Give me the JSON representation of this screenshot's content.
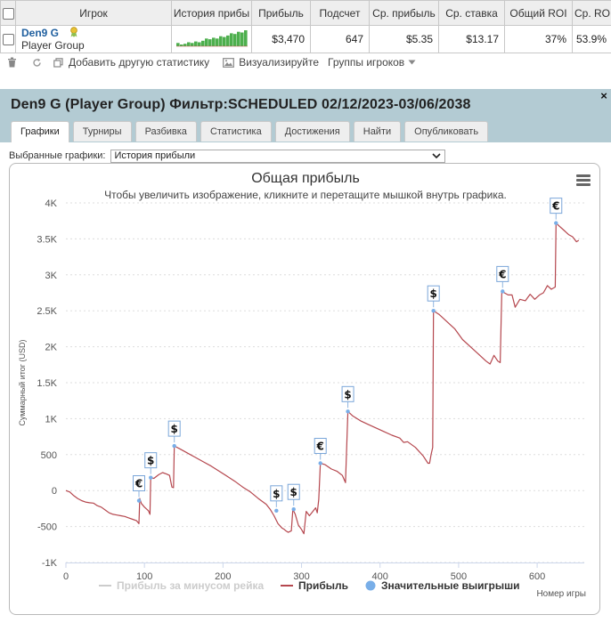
{
  "table": {
    "headers": [
      "Игрок",
      "История прибы",
      "Прибыль",
      "Подсчет",
      "Ср. прибыль",
      "Ср. ставка",
      "Общий ROI",
      "Ср. ROI"
    ],
    "row": {
      "player_name": "Den9 G",
      "player_group": "Player Group",
      "profit": "$3,470",
      "count": "647",
      "avg_profit": "$5.35",
      "avg_stake": "$13.17",
      "total_roi": "37%",
      "avg_roi": "53.9%"
    },
    "sparkline": [
      0,
      -2,
      -1,
      1,
      0,
      2,
      1,
      3,
      6,
      5,
      7,
      6,
      9,
      8,
      10,
      13,
      12,
      15,
      14,
      17
    ],
    "sparkline_color": "#3aa63a"
  },
  "toolbar": {
    "add_stats_label": "Добавить другую статистику",
    "visualize_label": "Визуализируйте",
    "groups_label": "Группы игроков"
  },
  "dialog": {
    "title": "Den9 G (Player Group) Фильтр:SCHEDULED 02/12/2023-03/06/2038",
    "close_glyph": "×",
    "tabs": [
      "Графики",
      "Турниры",
      "Разбивка",
      "Статистика",
      "Достижения",
      "Найти",
      "Опубликовать"
    ],
    "active_tab": 0,
    "select_label": "Выбранные графики:",
    "select_value": "История прибыли"
  },
  "chart_data": {
    "type": "line",
    "title": "Общая прибыль",
    "subtitle": "Чтобы увеличить изображение, кликните и перетащите мышкой внутрь графика.",
    "xlabel": "Номер игры",
    "ylabel": "Суммарный итог (USD)",
    "xlim": [
      0,
      660
    ],
    "ylim": [
      -1000,
      4000
    ],
    "x_ticks": [
      0,
      100,
      200,
      300,
      400,
      500,
      600
    ],
    "y_ticks": [
      -1000,
      -500,
      0,
      500,
      1000,
      1500,
      2000,
      2500,
      3000,
      3500,
      4000
    ],
    "y_tick_labels": [
      "-1K",
      "-500",
      "0",
      "500",
      "1K",
      "1.5K",
      "2K",
      "2.5K",
      "3K",
      "3.5K",
      "4K"
    ],
    "grid": "horizontal dashed",
    "legend": [
      "Прибыль за минусом рейка",
      "Прибыль",
      "Значительные выигрыши"
    ],
    "legend_position": "bottom",
    "series": [
      {
        "name": "Прибыль",
        "color": "#b5474e",
        "points": [
          [
            0,
            0
          ],
          [
            5,
            -20
          ],
          [
            10,
            -70
          ],
          [
            15,
            -110
          ],
          [
            20,
            -140
          ],
          [
            25,
            -160
          ],
          [
            30,
            -170
          ],
          [
            35,
            -175
          ],
          [
            40,
            -210
          ],
          [
            45,
            -230
          ],
          [
            50,
            -270
          ],
          [
            55,
            -310
          ],
          [
            60,
            -330
          ],
          [
            65,
            -340
          ],
          [
            70,
            -350
          ],
          [
            75,
            -360
          ],
          [
            80,
            -380
          ],
          [
            85,
            -400
          ],
          [
            90,
            -420
          ],
          [
            93,
            -460
          ],
          [
            94,
            -110
          ],
          [
            96,
            -180
          ],
          [
            100,
            -230
          ],
          [
            105,
            -280
          ],
          [
            107,
            -330
          ],
          [
            108,
            180
          ],
          [
            112,
            170
          ],
          [
            118,
            220
          ],
          [
            123,
            250
          ],
          [
            128,
            230
          ],
          [
            132,
            210
          ],
          [
            135,
            50
          ],
          [
            137,
            40
          ],
          [
            138,
            620
          ],
          [
            145,
            580
          ],
          [
            155,
            520
          ],
          [
            165,
            460
          ],
          [
            175,
            400
          ],
          [
            185,
            340
          ],
          [
            195,
            270
          ],
          [
            205,
            200
          ],
          [
            215,
            130
          ],
          [
            225,
            50
          ],
          [
            235,
            -20
          ],
          [
            245,
            -110
          ],
          [
            255,
            -190
          ],
          [
            260,
            -260
          ],
          [
            265,
            -350
          ],
          [
            270,
            -460
          ],
          [
            275,
            -520
          ],
          [
            278,
            -540
          ],
          [
            280,
            -560
          ],
          [
            283,
            -580
          ],
          [
            287,
            -560
          ],
          [
            289,
            -260
          ],
          [
            292,
            -330
          ],
          [
            296,
            -480
          ],
          [
            300,
            -540
          ],
          [
            303,
            -600
          ],
          [
            306,
            -290
          ],
          [
            310,
            -350
          ],
          [
            318,
            -240
          ],
          [
            320,
            -310
          ],
          [
            322,
            -120
          ],
          [
            324,
            380
          ],
          [
            330,
            360
          ],
          [
            338,
            300
          ],
          [
            345,
            270
          ],
          [
            352,
            210
          ],
          [
            356,
            110
          ],
          [
            359,
            1100
          ],
          [
            365,
            1040
          ],
          [
            375,
            970
          ],
          [
            385,
            920
          ],
          [
            395,
            870
          ],
          [
            405,
            820
          ],
          [
            415,
            770
          ],
          [
            425,
            730
          ],
          [
            430,
            670
          ],
          [
            435,
            680
          ],
          [
            445,
            600
          ],
          [
            455,
            480
          ],
          [
            461,
            380
          ],
          [
            463,
            380
          ],
          [
            465,
            500
          ],
          [
            467,
            600
          ],
          [
            468,
            2500
          ],
          [
            475,
            2450
          ],
          [
            485,
            2350
          ],
          [
            495,
            2250
          ],
          [
            505,
            2100
          ],
          [
            515,
            2000
          ],
          [
            525,
            1900
          ],
          [
            535,
            1800
          ],
          [
            540,
            1760
          ],
          [
            545,
            1880
          ],
          [
            550,
            1800
          ],
          [
            553,
            1780
          ],
          [
            555,
            2770
          ],
          [
            563,
            2720
          ],
          [
            568,
            2720
          ],
          [
            572,
            2550
          ],
          [
            578,
            2660
          ],
          [
            585,
            2640
          ],
          [
            591,
            2730
          ],
          [
            597,
            2660
          ],
          [
            603,
            2720
          ],
          [
            608,
            2750
          ],
          [
            613,
            2850
          ],
          [
            618,
            2800
          ],
          [
            623,
            2830
          ],
          [
            624,
            3720
          ],
          [
            628,
            3680
          ],
          [
            635,
            3610
          ],
          [
            640,
            3560
          ],
          [
            645,
            3530
          ],
          [
            650,
            3460
          ],
          [
            653,
            3480
          ]
        ]
      },
      {
        "name": "Прибыль за минусом рейка",
        "color": "#cccccc",
        "points": []
      }
    ],
    "big_wins": [
      {
        "x": 93,
        "y": -140,
        "label": "€"
      },
      {
        "x": 108,
        "y": 180,
        "label": "$"
      },
      {
        "x": 138,
        "y": 620,
        "label": "$"
      },
      {
        "x": 268,
        "y": -280,
        "label": "$"
      },
      {
        "x": 290,
        "y": -260,
        "label": "$"
      },
      {
        "x": 324,
        "y": 380,
        "label": "€"
      },
      {
        "x": 359,
        "y": 1100,
        "label": "$"
      },
      {
        "x": 468,
        "y": 2500,
        "label": "$"
      },
      {
        "x": 556,
        "y": 2770,
        "label": "€"
      },
      {
        "x": 624,
        "y": 3720,
        "label": "€"
      }
    ],
    "big_win_color": "#78aee8"
  }
}
